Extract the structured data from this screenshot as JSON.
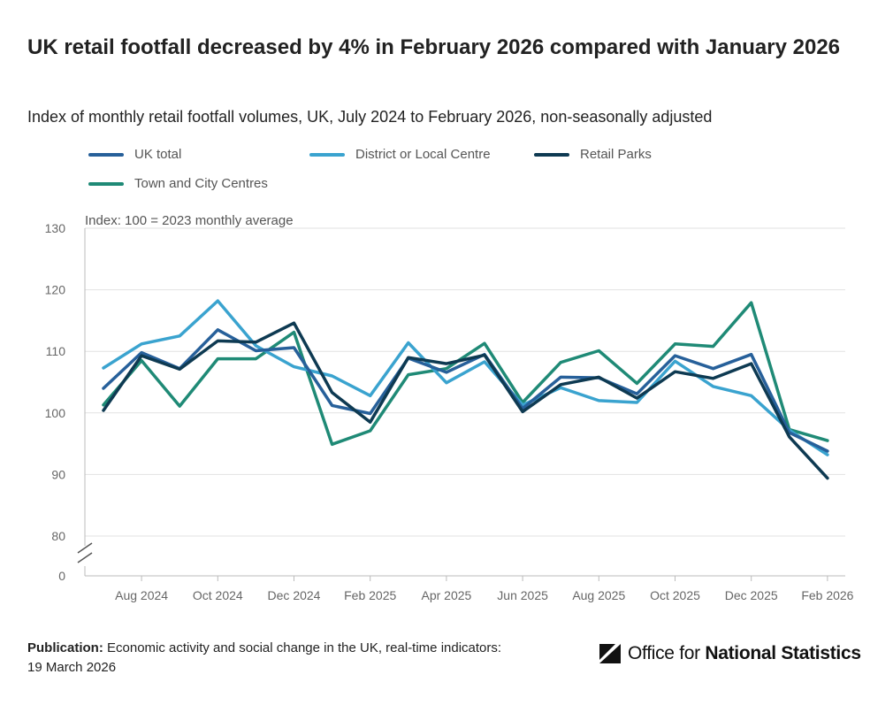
{
  "header": {
    "title": "UK retail footfall decreased by 4% in February 2026 compared with January 2026",
    "subtitle": "Index of monthly retail footfall volumes, UK, July 2024 to February 2026, non-seasonally adjusted"
  },
  "chart_data": {
    "type": "line",
    "ylabel": "Index: 100 = 2023 monthly average",
    "xlabel": "",
    "ylim": [
      80,
      130
    ],
    "axis_break": true,
    "y_ticks": [
      "130",
      "120",
      "110",
      "100",
      "90",
      "80",
      "0"
    ],
    "x": [
      "Jul 2024",
      "Aug 2024",
      "Sep 2024",
      "Oct 2024",
      "Nov 2024",
      "Dec 2024",
      "Jan 2025",
      "Feb 2025",
      "Mar 2025",
      "Apr 2025",
      "May 2025",
      "Jun 2025",
      "Jul 2025",
      "Aug 2025",
      "Sep 2025",
      "Oct 2025",
      "Nov 2025",
      "Dec 2025",
      "Jan 2026",
      "Feb 2026"
    ],
    "x_tick_labels": [
      "Aug 2024",
      "Oct 2024",
      "Dec 2024",
      "Feb 2025",
      "Apr 2025",
      "Jun 2025",
      "Aug 2025",
      "Oct 2025",
      "Dec 2025",
      "Feb 2026"
    ],
    "grid": true,
    "legend_position": "top",
    "series": [
      {
        "name": "UK total",
        "color": "#27609a",
        "values": [
          104.0,
          109.8,
          107.2,
          113.5,
          110.1,
          110.6,
          101.2,
          99.9,
          108.9,
          106.6,
          109.5,
          100.7,
          105.8,
          105.7,
          103.1,
          109.3,
          107.2,
          109.5,
          96.8,
          93.8
        ]
      },
      {
        "name": "District or Local Centre",
        "color": "#3aa3cf",
        "values": [
          107.3,
          111.2,
          112.5,
          118.2,
          110.9,
          107.5,
          106.0,
          102.8,
          111.4,
          104.9,
          108.3,
          101.3,
          104.1,
          102.0,
          101.7,
          108.4,
          104.3,
          102.8,
          97.2,
          93.2
        ]
      },
      {
        "name": "Retail Parks",
        "color": "#0e3a52",
        "values": [
          100.4,
          109.3,
          107.1,
          111.7,
          111.5,
          114.6,
          103.3,
          98.5,
          109.0,
          108.0,
          109.4,
          100.2,
          104.6,
          105.8,
          102.4,
          106.7,
          105.6,
          108.0,
          96.1,
          89.4
        ]
      },
      {
        "name": "Town and City Centres",
        "color": "#1f8a76",
        "values": [
          101.3,
          108.5,
          101.1,
          108.8,
          108.8,
          113.1,
          94.9,
          97.1,
          106.2,
          107.2,
          111.3,
          101.7,
          108.2,
          110.1,
          104.8,
          111.2,
          110.8,
          117.9,
          97.3,
          95.5
        ]
      }
    ]
  },
  "footer": {
    "publication_label": "Publication:",
    "publication_text": "Economic activity and social change in the UK, real-time indicators:",
    "publication_date": "19 March 2026"
  },
  "logo": {
    "icon": "ons-logo-icon",
    "text_regular": "Office for ",
    "text_bold": "National Statistics"
  }
}
